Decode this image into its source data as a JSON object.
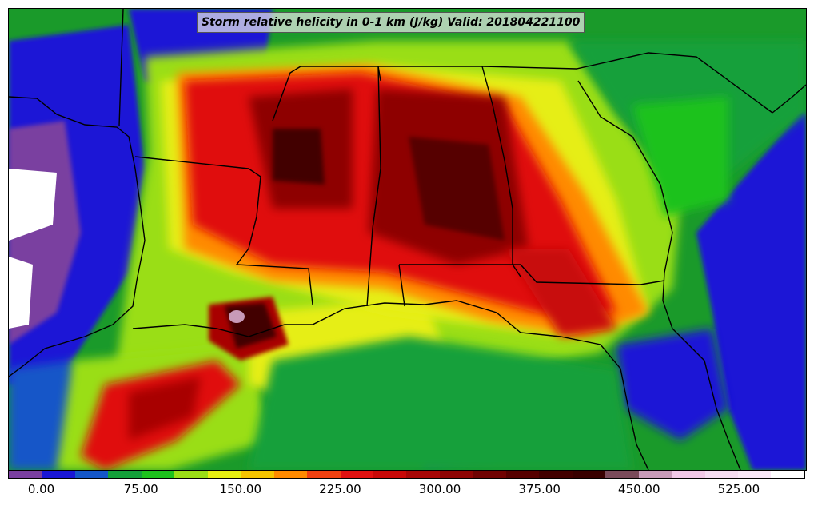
{
  "title": "Storm relative helicity in 0-1 km (J/kg) Valid: 201804221100",
  "colorbar": {
    "colors": [
      "#7a3fa0",
      "#1a16d6",
      "#1456c8",
      "#13a03a",
      "#1dc21d",
      "#9ade16",
      "#e6ee12",
      "#f5c400",
      "#ff8a00",
      "#f04010",
      "#e01010",
      "#c80808",
      "#a80606",
      "#8e0404",
      "#700202",
      "#560000",
      "#420000",
      "#380000",
      "#7a4a5a",
      "#c89ab8",
      "#f2c8e8",
      "#f6dcf2",
      "#fae8f8",
      "#ffffff"
    ],
    "tick_labels": [
      "0.00",
      "75.00",
      "150.00",
      "225.00",
      "300.00",
      "375.00",
      "450.00",
      "525.00"
    ],
    "tick_values": [
      0,
      75,
      150,
      225,
      300,
      375,
      450,
      525
    ],
    "range": [
      -25,
      575
    ]
  }
}
